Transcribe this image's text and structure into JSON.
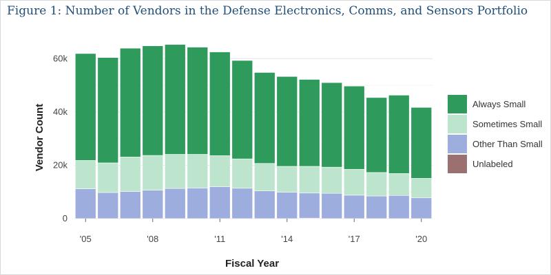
{
  "figure": {
    "title": "Figure 1: Number of Vendors in the Defense Electronics, Comms, and Sensors Portfolio"
  },
  "chart_data": {
    "type": "bar",
    "stacked": true,
    "title": "Figure 1: Number of Vendors in the Defense Electronics, Comms, and Sensors Portfolio",
    "xlabel": "Fiscal Year",
    "ylabel": "Vendor Count",
    "ylim": [
      0,
      66000
    ],
    "yticks": [
      0,
      20000,
      40000,
      60000
    ],
    "ytick_labels": [
      "0",
      "20k",
      "40k",
      "60k"
    ],
    "categories": [
      2005,
      2006,
      2007,
      2008,
      2009,
      2010,
      2011,
      2012,
      2013,
      2014,
      2015,
      2016,
      2017,
      2018,
      2019,
      2020
    ],
    "xticks": [
      2005,
      2008,
      2011,
      2014,
      2017,
      2020
    ],
    "xtick_labels": [
      "'05",
      "'08",
      "'11",
      "'14",
      "'17",
      "'20"
    ],
    "grid": true,
    "legend_position": "right",
    "series": [
      {
        "name": "Unlabeled",
        "color": "#9b7070",
        "values": [
          0,
          0,
          0,
          0,
          0,
          0,
          0,
          0,
          0,
          0,
          200,
          0,
          0,
          0,
          0,
          0
        ]
      },
      {
        "name": "Other Than Small",
        "color": "#9daede",
        "values": [
          11200,
          9800,
          10200,
          10700,
          11300,
          11500,
          12000,
          11400,
          10400,
          9900,
          9400,
          9500,
          8800,
          8500,
          8700,
          7800
        ]
      },
      {
        "name": "Sometimes Small",
        "color": "#bde5cd",
        "values": [
          10600,
          11100,
          12900,
          13000,
          12800,
          12600,
          11600,
          11000,
          10300,
          9700,
          10000,
          9800,
          9700,
          8800,
          8200,
          7300
        ]
      },
      {
        "name": "Always Small",
        "color": "#2e9a5b",
        "values": [
          40100,
          39500,
          40800,
          41100,
          41200,
          40200,
          38900,
          36900,
          34100,
          33700,
          32600,
          31700,
          31200,
          28100,
          29400,
          26600
        ]
      }
    ],
    "legend_order": [
      "Always Small",
      "Sometimes Small",
      "Other Than Small",
      "Unlabeled"
    ]
  }
}
